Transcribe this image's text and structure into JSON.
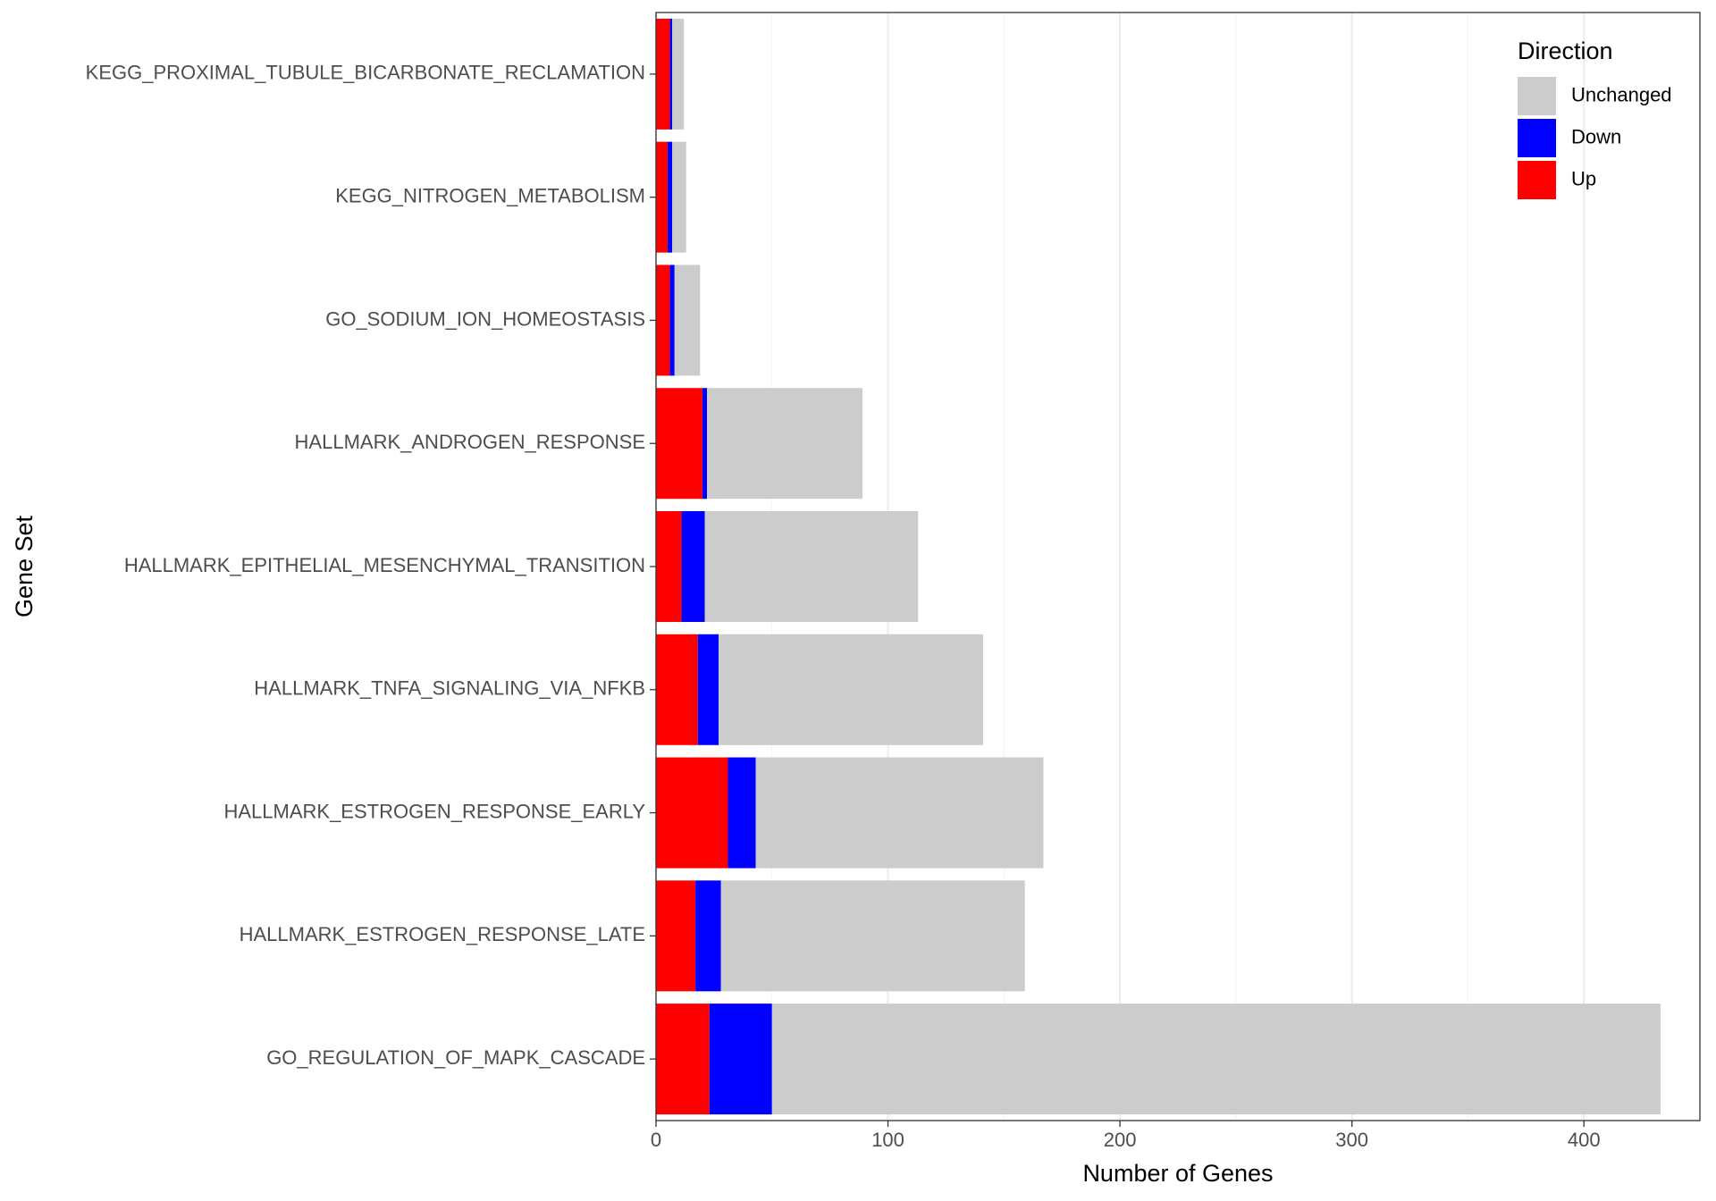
{
  "chart_data": {
    "type": "bar",
    "orientation": "horizontal",
    "stacked": true,
    "xlabel": "Number of Genes",
    "ylabel": "Gene Set",
    "xlim": [
      0,
      450
    ],
    "x_ticks": [
      0,
      100,
      200,
      300,
      400
    ],
    "grid": true,
    "legend_position": "top-right",
    "categories": [
      "KEGG_PROXIMAL_TUBULE_BICARBONATE_RECLAMATION",
      "KEGG_NITROGEN_METABOLISM",
      "GO_SODIUM_ION_HOMEOSTASIS",
      "HALLMARK_ANDROGEN_RESPONSE",
      "HALLMARK_EPITHELIAL_MESENCHYMAL_TRANSITION",
      "HALLMARK_TNFA_SIGNALING_VIA_NFKB",
      "HALLMARK_ESTROGEN_RESPONSE_EARLY",
      "HALLMARK_ESTROGEN_RESPONSE_LATE",
      "GO_REGULATION_OF_MAPK_CASCADE"
    ],
    "series": [
      {
        "name": "Up",
        "color": "#ff0000",
        "values": [
          6,
          5,
          6,
          20,
          11,
          18,
          31,
          17,
          23
        ]
      },
      {
        "name": "Down",
        "color": "#0000ff",
        "values": [
          1,
          2,
          2,
          2,
          10,
          9,
          12,
          11,
          27
        ]
      },
      {
        "name": "Unchanged",
        "color": "#cccccc",
        "values": [
          5,
          6,
          11,
          67,
          92,
          114,
          124,
          131,
          383
        ]
      }
    ],
    "legend": {
      "title": "Direction",
      "entries": [
        "Unchanged",
        "Down",
        "Up"
      ]
    }
  }
}
